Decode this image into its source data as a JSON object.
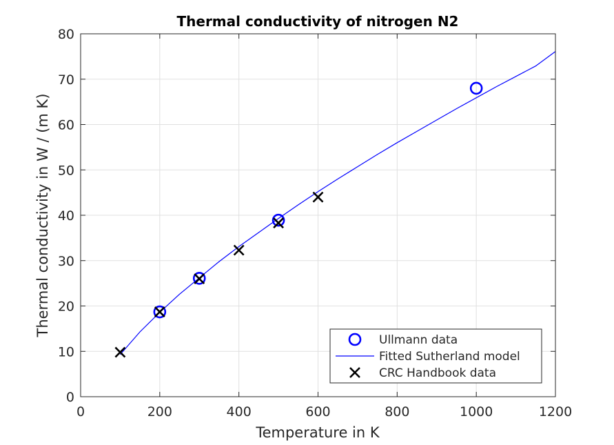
{
  "chart_data": {
    "type": "scatter",
    "title": "Thermal conductivity of nitrogen N2",
    "xlabel": "Temperature in K",
    "ylabel": "Thermal conductivity in W / (m K)",
    "xlim": [
      0,
      1200
    ],
    "ylim": [
      0,
      80
    ],
    "xticks": [
      0,
      200,
      400,
      600,
      800,
      1000,
      1200
    ],
    "yticks": [
      0,
      10,
      20,
      30,
      40,
      50,
      60,
      70,
      80
    ],
    "grid": true,
    "legend_position": "bottom-right",
    "series": [
      {
        "name": "Ullmann data",
        "kind": "marker-circle",
        "color": "#0000ff",
        "x": [
          200,
          300,
          500,
          1000
        ],
        "y": [
          18.7,
          26.1,
          38.9,
          68.0
        ]
      },
      {
        "name": "Fitted Sutherland model",
        "kind": "line",
        "color": "#0000ff",
        "x": [
          100,
          150,
          200,
          250,
          300,
          350,
          400,
          450,
          500,
          550,
          600,
          650,
          700,
          750,
          800,
          850,
          900,
          950,
          1000,
          1050,
          1100,
          1150,
          1200
        ],
        "y": [
          9.3,
          14.3,
          18.6,
          22.6,
          26.2,
          29.8,
          33.1,
          36.2,
          39.3,
          42.3,
          45.2,
          48.0,
          50.7,
          53.4,
          56.0,
          58.5,
          61.0,
          63.5,
          65.9,
          68.3,
          70.6,
          72.9,
          76.1
        ]
      },
      {
        "name": "CRC Handbook data",
        "kind": "marker-x",
        "color": "#000000",
        "x": [
          100,
          200,
          300,
          400,
          500,
          600
        ],
        "y": [
          9.8,
          18.7,
          26.0,
          32.3,
          38.3,
          44.0
        ]
      }
    ]
  }
}
